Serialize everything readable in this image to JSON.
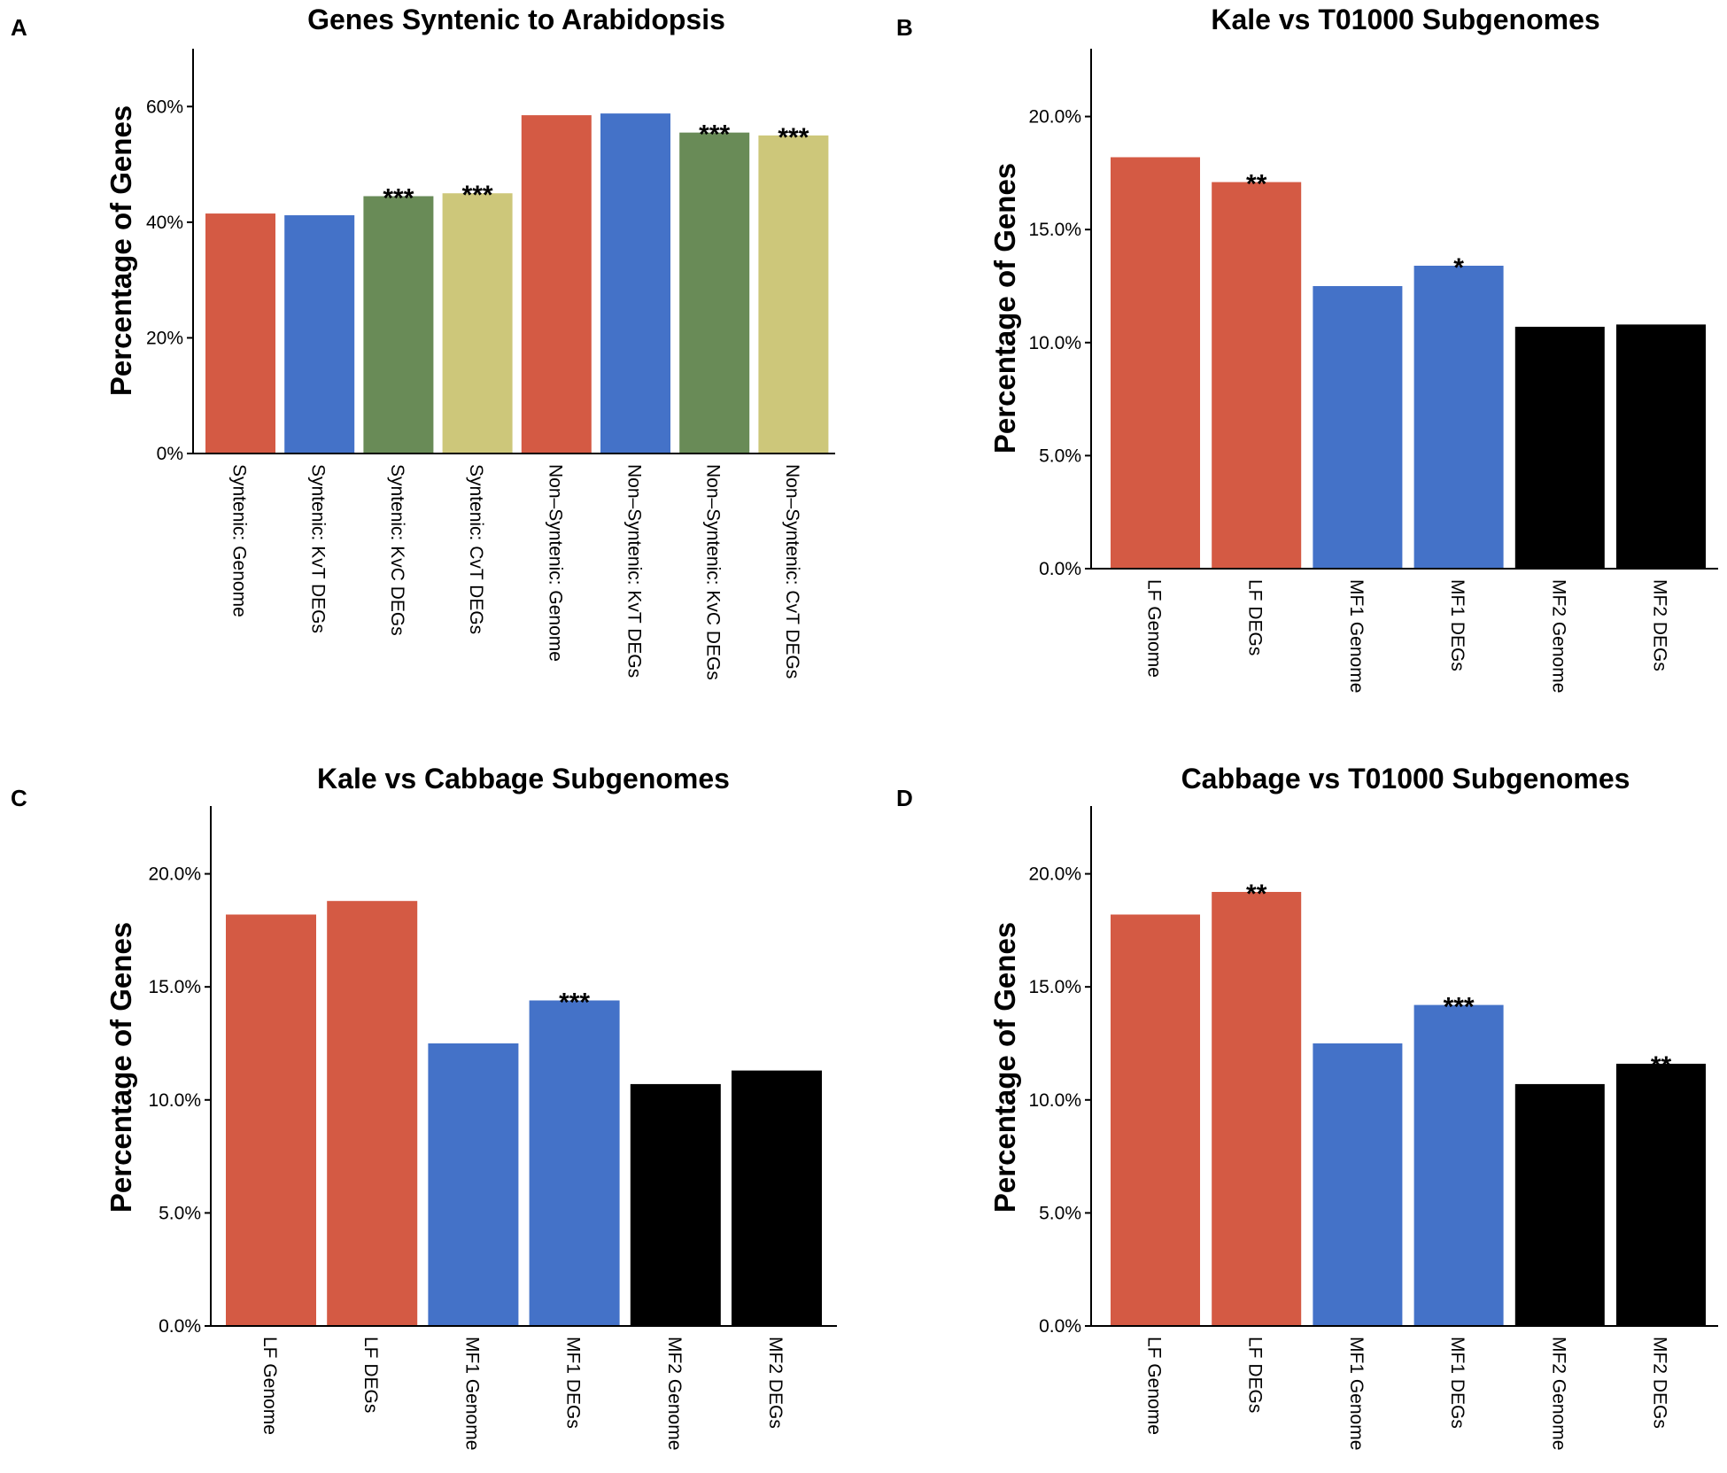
{
  "chart_data": [
    {
      "panel": "A",
      "type": "bar",
      "title": "Genes Syntenic to Arabidopsis",
      "xlabel": "",
      "ylabel": "Percentage of Genes",
      "ylim": [
        0,
        0.7
      ],
      "yticks": [
        0,
        0.2,
        0.4,
        0.6
      ],
      "ytick_labels": [
        "0%",
        "20%",
        "40%",
        "60%"
      ],
      "categories": [
        "Syntenic: Genome",
        "Syntenic: KvT DEGs",
        "Syntenic: KvC DEGs",
        "Syntenic: CvT DEGs",
        "Non–Syntenic: Genome",
        "Non–Syntenic: KvT DEGs",
        "Non–Syntenic: KvC DEGs",
        "Non–Syntenic: CvT DEGs"
      ],
      "values": [
        0.415,
        0.412,
        0.445,
        0.45,
        0.585,
        0.588,
        0.555,
        0.55
      ],
      "significance": [
        "",
        "",
        "***",
        "***",
        "",
        "",
        "***",
        "***"
      ],
      "colors": [
        "#d45a44",
        "#4472c8",
        "#698b57",
        "#cdc77a",
        "#d45a44",
        "#4472c8",
        "#698b57",
        "#cdc77a"
      ]
    },
    {
      "panel": "B",
      "type": "bar",
      "title": "Kale vs T01000 Subgenomes",
      "xlabel": "",
      "ylabel": "Percentage of Genes",
      "ylim": [
        0,
        0.23
      ],
      "yticks": [
        0,
        0.05,
        0.1,
        0.15,
        0.2
      ],
      "ytick_labels": [
        "0.0%",
        "5.0%",
        "10.0%",
        "15.0%",
        "20.0%"
      ],
      "categories": [
        "LF Genome",
        "LF DEGs",
        "MF1 Genome",
        "MF1 DEGs",
        "MF2 Genome",
        "MF2 DEGs"
      ],
      "values": [
        0.182,
        0.171,
        0.125,
        0.134,
        0.107,
        0.108
      ],
      "significance": [
        "",
        "**",
        "",
        "*",
        "",
        ""
      ],
      "colors": [
        "#d45a44",
        "#d45a44",
        "#4472c8",
        "#4472c8",
        "#000000",
        "#000000"
      ]
    },
    {
      "panel": "C",
      "type": "bar",
      "title": "Kale vs Cabbage Subgenomes",
      "xlabel": "",
      "ylabel": "Percentage of Genes",
      "ylim": [
        0,
        0.23
      ],
      "yticks": [
        0,
        0.05,
        0.1,
        0.15,
        0.2
      ],
      "ytick_labels": [
        "0.0%",
        "5.0%",
        "10.0%",
        "15.0%",
        "20.0%"
      ],
      "categories": [
        "LF Genome",
        "LF DEGs",
        "MF1 Genome",
        "MF1 DEGs",
        "MF2 Genome",
        "MF2 DEGs"
      ],
      "values": [
        0.182,
        0.188,
        0.125,
        0.144,
        0.107,
        0.113
      ],
      "significance": [
        "",
        "",
        "",
        "***",
        "",
        ""
      ],
      "colors": [
        "#d45a44",
        "#d45a44",
        "#4472c8",
        "#4472c8",
        "#000000",
        "#000000"
      ]
    },
    {
      "panel": "D",
      "type": "bar",
      "title": "Cabbage vs T01000 Subgenomes",
      "xlabel": "",
      "ylabel": "Percentage of Genes",
      "ylim": [
        0,
        0.23
      ],
      "yticks": [
        0,
        0.05,
        0.1,
        0.15,
        0.2
      ],
      "ytick_labels": [
        "0.0%",
        "5.0%",
        "10.0%",
        "15.0%",
        "20.0%"
      ],
      "categories": [
        "LF Genome",
        "LF DEGs",
        "MF1 Genome",
        "MF1 DEGs",
        "MF2 Genome",
        "MF2 DEGs"
      ],
      "values": [
        0.182,
        0.192,
        0.125,
        0.142,
        0.107,
        0.116
      ],
      "significance": [
        "",
        "**",
        "",
        "***",
        "",
        "**"
      ],
      "colors": [
        "#d45a44",
        "#d45a44",
        "#4472c8",
        "#4472c8",
        "#000000",
        "#000000"
      ]
    }
  ]
}
